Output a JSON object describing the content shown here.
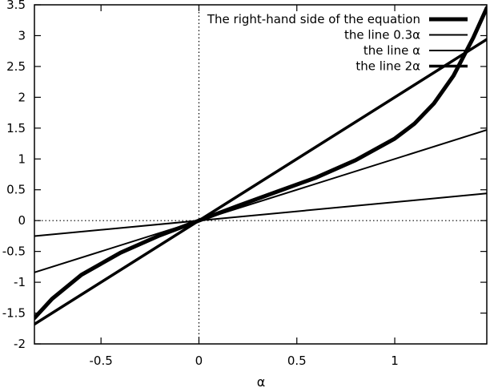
{
  "chart_data": {
    "type": "line",
    "title": "",
    "xlabel": "α",
    "ylabel": "",
    "xlim": [
      -0.84,
      1.47
    ],
    "ylim": [
      -2,
      3.5
    ],
    "grid": false,
    "legend_position": "top-right",
    "x_ticks": [
      {
        "value": -0.5,
        "label": "-0.5"
      },
      {
        "value": 0,
        "label": "0"
      },
      {
        "value": 0.5,
        "label": "0.5"
      },
      {
        "value": 1,
        "label": "1"
      }
    ],
    "y_ticks": [
      {
        "value": -2,
        "label": "-2"
      },
      {
        "value": -1.5,
        "label": "-1.5"
      },
      {
        "value": -1,
        "label": "-1"
      },
      {
        "value": -0.5,
        "label": "-0.5"
      },
      {
        "value": 0,
        "label": "0"
      },
      {
        "value": 0.5,
        "label": "0.5"
      },
      {
        "value": 1,
        "label": "1"
      },
      {
        "value": 1.5,
        "label": "1.5"
      },
      {
        "value": 2,
        "label": "2"
      },
      {
        "value": 2.5,
        "label": "2.5"
      },
      {
        "value": 3,
        "label": "3"
      },
      {
        "value": 3.5,
        "label": "3.5"
      }
    ],
    "zero_lines": {
      "x": 0,
      "y": 0,
      "style": "dotted"
    },
    "series": [
      {
        "name": "The right-hand side of the equation",
        "style": "very-thick",
        "color": "#000000",
        "x": [
          -0.84,
          -0.75,
          -0.6,
          -0.4,
          -0.2,
          0,
          0.2,
          0.4,
          0.6,
          0.8,
          1.0,
          1.1,
          1.2,
          1.3,
          1.4,
          1.47
        ],
        "y": [
          -1.58,
          -1.27,
          -0.88,
          -0.52,
          -0.24,
          0.0,
          0.24,
          0.47,
          0.7,
          0.98,
          1.33,
          1.57,
          1.9,
          2.35,
          2.96,
          3.45
        ]
      },
      {
        "name": "the line  0.3α",
        "style": "thin",
        "color": "#000000",
        "x": [
          -0.84,
          1.47
        ],
        "y": [
          -0.252,
          0.441
        ]
      },
      {
        "name": "the line α",
        "style": "thin",
        "color": "#000000",
        "x": [
          -0.84,
          1.47
        ],
        "y": [
          -0.84,
          1.47
        ]
      },
      {
        "name": "the line 2α",
        "style": "thick",
        "color": "#000000",
        "x": [
          -0.84,
          1.47
        ],
        "y": [
          -1.68,
          2.94
        ]
      }
    ]
  }
}
